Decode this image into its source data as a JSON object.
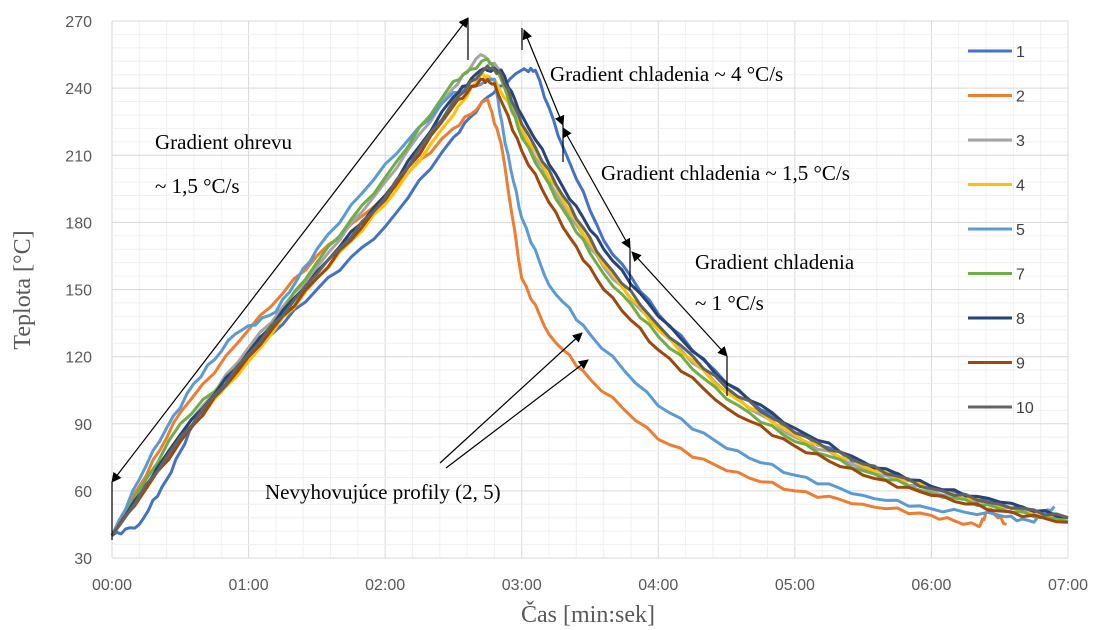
{
  "chart_data": {
    "type": "line",
    "xlabel": "Čas [min:sek]",
    "ylabel": "Teplota [°C]",
    "x_unit": "min",
    "x_ticks": [
      "00:00",
      "01:00",
      "02:00",
      "03:00",
      "04:00",
      "05:00",
      "06:00",
      "07:00"
    ],
    "xlim": [
      0,
      7
    ],
    "ylim": [
      30,
      270
    ],
    "y_ticks": [
      30,
      60,
      90,
      120,
      150,
      180,
      210,
      240,
      270
    ],
    "grid": true,
    "legend": "right",
    "series": [
      {
        "name": "1",
        "color": "#4472C4",
        "x": [
          0,
          0.2,
          0.4,
          0.6,
          1.0,
          1.5,
          2.0,
          2.5,
          2.75,
          3.0,
          3.1,
          3.3,
          3.6,
          4.0,
          4.5,
          5.0,
          5.5,
          6.0,
          6.5,
          7.0
        ],
        "y": [
          40,
          45,
          65,
          90,
          120,
          150,
          178,
          218,
          236,
          248,
          248,
          214,
          172,
          139,
          108,
          86,
          72,
          62,
          54,
          48
        ]
      },
      {
        "name": "2",
        "color": "#ED7D31",
        "x": [
          0,
          0.2,
          0.5,
          1.0,
          1.5,
          2.0,
          2.5,
          2.75,
          2.85,
          3.0,
          3.2,
          3.5,
          4.0,
          4.5,
          5.0,
          5.5,
          6.0,
          6.35,
          6.42,
          6.55
        ],
        "y": [
          40,
          62,
          95,
          132,
          165,
          192,
          222,
          235,
          215,
          155,
          130,
          110,
          83,
          69,
          60,
          54,
          49,
          44,
          52,
          45
        ]
      },
      {
        "name": "3",
        "color": "#A5A5A5",
        "x": [
          0,
          0.5,
          1.0,
          1.5,
          2.0,
          2.5,
          2.7,
          2.85,
          3.0,
          3.3,
          3.6,
          4.0,
          4.5,
          5.0,
          5.5,
          6.0,
          6.5,
          7.0
        ],
        "y": [
          40,
          85,
          124,
          160,
          198,
          240,
          255,
          248,
          220,
          188,
          160,
          132,
          104,
          84,
          70,
          60,
          53,
          47
        ]
      },
      {
        "name": "4",
        "color": "#FFC000",
        "x": [
          0,
          0.5,
          1.0,
          1.5,
          2.0,
          2.5,
          2.7,
          2.8,
          3.0,
          3.3,
          3.6,
          4.0,
          4.5,
          5.0,
          5.5,
          6.0,
          6.5,
          7.0
        ],
        "y": [
          40,
          83,
          118,
          155,
          188,
          228,
          246,
          244,
          222,
          190,
          161,
          132,
          104,
          85,
          71,
          61,
          53,
          47
        ]
      },
      {
        "name": "5",
        "color": "#5B9BD5",
        "x": [
          0,
          0.3,
          0.6,
          0.9,
          1.2,
          1.5,
          2.0,
          2.5,
          2.8,
          2.88,
          3.0,
          3.2,
          3.5,
          4.0,
          4.5,
          5.0,
          5.5,
          6.0,
          6.5,
          6.75,
          6.9
        ],
        "y": [
          40,
          78,
          108,
          130,
          140,
          168,
          206,
          238,
          244,
          215,
          182,
          152,
          130,
          98,
          79,
          67,
          58,
          52,
          49,
          46,
          53
        ]
      },
      {
        "name": "7",
        "color": "#70AD47",
        "x": [
          0,
          0.5,
          1.0,
          1.5,
          2.0,
          2.5,
          2.75,
          2.85,
          3.0,
          3.3,
          3.6,
          4.0,
          4.5,
          5.0,
          5.5,
          6.0,
          6.5,
          7.0
        ],
        "y": [
          40,
          90,
          120,
          162,
          200,
          243,
          253,
          244,
          218,
          186,
          157,
          129,
          101,
          82,
          69,
          59,
          52,
          46
        ]
      },
      {
        "name": "8",
        "color": "#264478",
        "x": [
          0,
          0.5,
          1.0,
          1.5,
          2.0,
          2.5,
          2.7,
          2.85,
          3.0,
          3.3,
          3.6,
          4.0,
          4.5,
          5.0,
          5.5,
          6.0,
          6.5,
          7.0
        ],
        "y": [
          40,
          85,
          122,
          158,
          192,
          236,
          248,
          248,
          228,
          196,
          168,
          138,
          108,
          88,
          73,
          62,
          55,
          48
        ]
      },
      {
        "name": "9",
        "color": "#9E480E",
        "x": [
          0,
          0.5,
          1.0,
          1.5,
          2.0,
          2.5,
          2.7,
          2.8,
          3.0,
          3.3,
          3.6,
          4.0,
          4.5,
          5.0,
          5.5,
          6.0,
          6.5,
          7.0
        ],
        "y": [
          40,
          82,
          120,
          155,
          190,
          232,
          244,
          242,
          212,
          178,
          150,
          123,
          97,
          80,
          67,
          58,
          51,
          46
        ]
      },
      {
        "name": "10",
        "color": "#636363",
        "x": [
          0,
          0.5,
          1.0,
          1.5,
          2.0,
          2.5,
          2.75,
          2.85,
          3.0,
          3.3,
          3.6,
          4.0,
          4.5,
          5.0,
          5.5,
          6.0,
          6.5,
          7.0
        ],
        "y": [
          40,
          84,
          121,
          157,
          191,
          234,
          250,
          246,
          224,
          192,
          163,
          134,
          106,
          86,
          72,
          61,
          54,
          48
        ]
      }
    ],
    "annotations": [
      {
        "id": "ohrev1",
        "text": "Gradient ohrevu"
      },
      {
        "id": "ohrev2",
        "text": "~ 1,5 °C/s"
      },
      {
        "id": "chl4",
        "text": "Gradient chladenia ~ 4 °C/s"
      },
      {
        "id": "chl15",
        "text": "Gradient chladenia ~ 1,5 °C/s"
      },
      {
        "id": "chl1a",
        "text": "Gradient chladenia"
      },
      {
        "id": "chl1b",
        "text": "~ 1 °C/s"
      },
      {
        "id": "nevyh",
        "text": "Nevyhovujúce profily (2, 5)"
      }
    ]
  }
}
